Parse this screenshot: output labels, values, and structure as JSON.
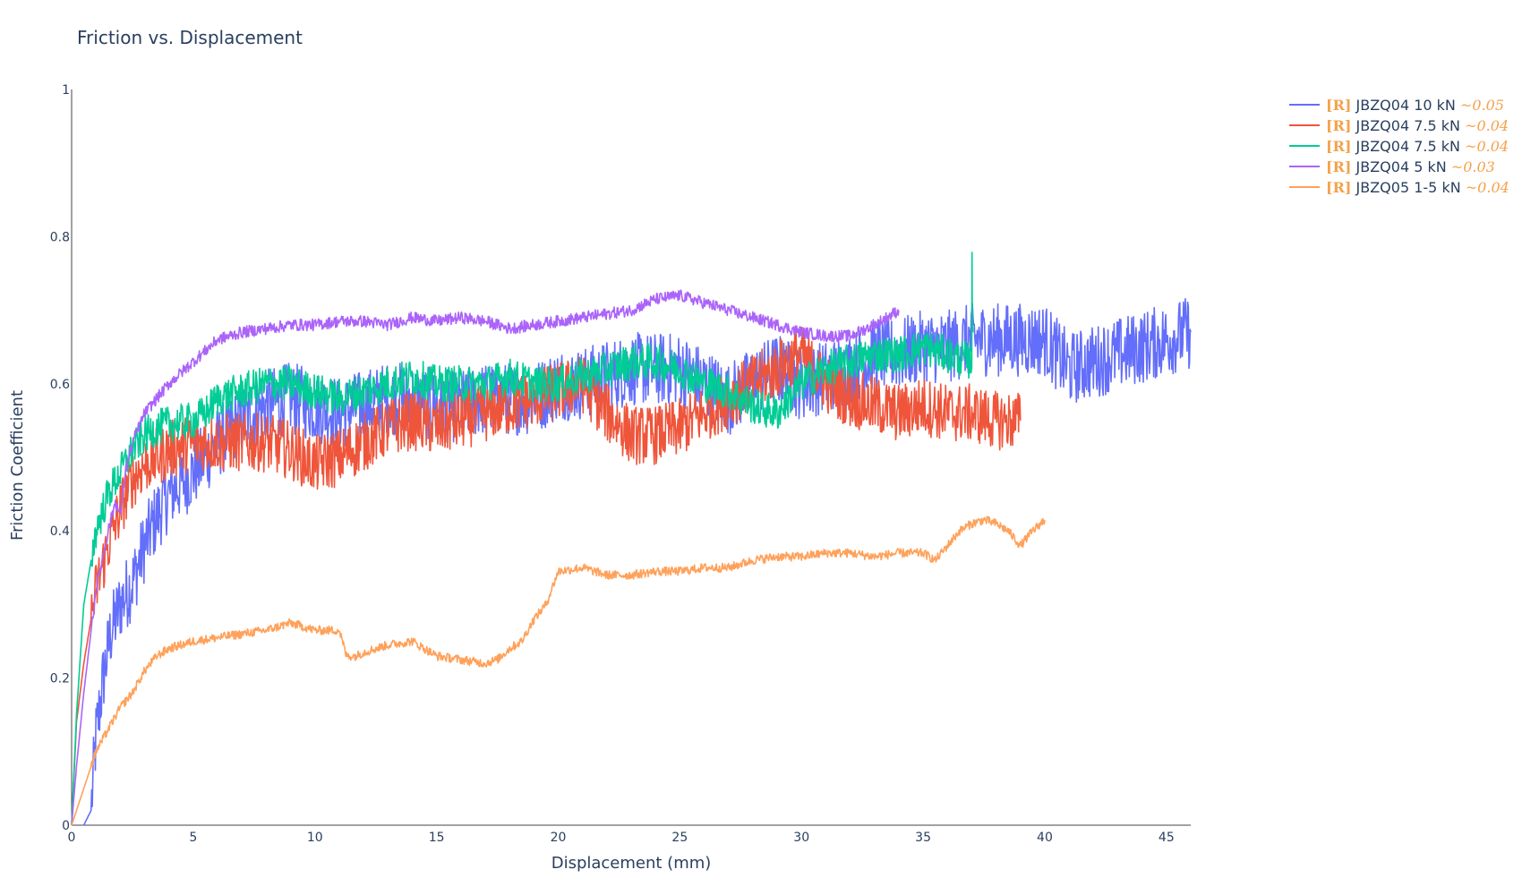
{
  "chart_data": {
    "type": "line",
    "title": "Friction vs. Displacement",
    "xlabel": "Displacement (mm)",
    "ylabel": "Friction Coefficient",
    "xlim": [
      0,
      46
    ],
    "ylim": [
      0,
      1
    ],
    "x_ticks": [
      "0",
      "5",
      "10",
      "15",
      "20",
      "25",
      "30",
      "35",
      "40",
      "45"
    ],
    "y_ticks": [
      "0",
      "0.2",
      "0.4",
      "0.6",
      "0.8",
      "1"
    ],
    "grid": false,
    "legend_position": "top-right",
    "tag_color": "#f4a24d",
    "series": [
      {
        "name": "JBZQ04 10 kN",
        "tag": "[R]",
        "approx": "~0.05",
        "color": "#636efa",
        "noise": 0.05,
        "x": [
          0.5,
          0.8,
          1.0,
          1.3,
          1.6,
          2.0,
          2.5,
          3.0,
          3.5,
          4.0,
          5.0,
          6.0,
          7.0,
          8.0,
          9.0,
          10.0,
          11.0,
          12.0,
          13.0,
          14.0,
          15.0,
          16.0,
          17.0,
          18.0,
          19.0,
          20.0,
          21.0,
          22.0,
          23.0,
          24.0,
          25.0,
          26.0,
          27.0,
          28.0,
          29.0,
          30.0,
          31.0,
          32.0,
          33.0,
          34.0,
          35.0,
          36.0,
          37.0,
          38.0,
          39.0,
          40.0,
          41.0,
          42.0,
          43.0,
          44.0,
          45.0,
          46.0
        ],
        "y": [
          0.0,
          0.02,
          0.12,
          0.2,
          0.26,
          0.3,
          0.33,
          0.38,
          0.42,
          0.45,
          0.48,
          0.52,
          0.55,
          0.57,
          0.58,
          0.57,
          0.56,
          0.57,
          0.58,
          0.58,
          0.57,
          0.57,
          0.58,
          0.58,
          0.58,
          0.6,
          0.6,
          0.61,
          0.62,
          0.62,
          0.62,
          0.6,
          0.58,
          0.6,
          0.62,
          0.6,
          0.61,
          0.62,
          0.64,
          0.64,
          0.65,
          0.65,
          0.66,
          0.66,
          0.66,
          0.66,
          0.62,
          0.63,
          0.64,
          0.65,
          0.66,
          0.67
        ]
      },
      {
        "name": "JBZQ04 7.5 kN",
        "tag": "[R]",
        "approx": "~0.04",
        "color": "#ef553b",
        "noise": 0.04,
        "x": [
          0.0,
          0.2,
          0.5,
          1.0,
          1.5,
          2.0,
          2.5,
          3.0,
          3.5,
          4.0,
          5.0,
          6.0,
          7.0,
          8.0,
          9.0,
          10.0,
          11.0,
          12.0,
          13.0,
          14.0,
          15.0,
          16.0,
          17.0,
          18.0,
          19.0,
          20.0,
          21.0,
          22.0,
          23.0,
          24.0,
          25.0,
          26.0,
          27.0,
          28.0,
          29.0,
          30.0,
          31.0,
          32.0,
          33.0,
          34.0,
          35.0,
          36.0,
          37.0,
          38.0,
          39.0
        ],
        "y": [
          0.0,
          0.14,
          0.22,
          0.32,
          0.38,
          0.43,
          0.47,
          0.49,
          0.5,
          0.51,
          0.52,
          0.52,
          0.52,
          0.52,
          0.51,
          0.49,
          0.5,
          0.52,
          0.54,
          0.55,
          0.54,
          0.55,
          0.56,
          0.57,
          0.58,
          0.59,
          0.6,
          0.56,
          0.53,
          0.53,
          0.54,
          0.56,
          0.58,
          0.6,
          0.62,
          0.64,
          0.6,
          0.58,
          0.57,
          0.56,
          0.57,
          0.56,
          0.56,
          0.55,
          0.55
        ]
      },
      {
        "name": "JBZQ04 7.5 kN",
        "tag": "[R]",
        "approx": "~0.04",
        "color": "#00cc96",
        "noise": 0.025,
        "x": [
          0.0,
          0.2,
          0.5,
          1.0,
          1.5,
          2.0,
          2.5,
          3.0,
          3.5,
          4.0,
          5.0,
          5.5,
          6.0,
          7.0,
          8.0,
          9.0,
          10.0,
          11.0,
          12.0,
          13.0,
          14.0,
          15.0,
          16.0,
          17.0,
          18.0,
          19.0,
          20.0,
          21.0,
          22.0,
          23.0,
          24.0,
          25.0,
          26.0,
          27.0,
          28.0,
          29.0,
          30.0,
          31.0,
          32.0,
          33.0,
          34.0,
          35.0,
          36.0,
          37.0,
          37.01,
          37.02,
          37.05
        ],
        "y": [
          0.0,
          0.15,
          0.3,
          0.4,
          0.45,
          0.48,
          0.51,
          0.53,
          0.54,
          0.545,
          0.55,
          0.56,
          0.58,
          0.59,
          0.6,
          0.6,
          0.59,
          0.58,
          0.59,
          0.6,
          0.61,
          0.6,
          0.6,
          0.6,
          0.61,
          0.6,
          0.6,
          0.61,
          0.62,
          0.63,
          0.63,
          0.62,
          0.6,
          0.59,
          0.57,
          0.56,
          0.6,
          0.62,
          0.63,
          0.64,
          0.64,
          0.65,
          0.64,
          0.63,
          0.8,
          0.66,
          0.67
        ]
      },
      {
        "name": "JBZQ04 5 kN",
        "tag": "[R]",
        "approx": "~0.03",
        "color": "#ab63fa",
        "noise": 0.008,
        "x": [
          0.0,
          0.2,
          0.5,
          1.0,
          1.5,
          1.8,
          2.0,
          2.2,
          2.5,
          3.0,
          3.5,
          4.0,
          5.0,
          6.0,
          7.0,
          8.0,
          9.0,
          10.0,
          11.0,
          12.0,
          13.0,
          14.0,
          15.0,
          16.0,
          17.0,
          18.0,
          19.0,
          20.0,
          21.0,
          22.0,
          23.0,
          24.0,
          25.0,
          26.0,
          27.0,
          28.0,
          29.0,
          30.0,
          31.0,
          32.0,
          33.0,
          34.0
        ],
        "y": [
          0.0,
          0.08,
          0.18,
          0.32,
          0.4,
          0.44,
          0.42,
          0.48,
          0.52,
          0.56,
          0.58,
          0.6,
          0.63,
          0.66,
          0.67,
          0.675,
          0.68,
          0.68,
          0.685,
          0.685,
          0.68,
          0.69,
          0.685,
          0.69,
          0.685,
          0.675,
          0.68,
          0.685,
          0.69,
          0.695,
          0.7,
          0.715,
          0.72,
          0.71,
          0.7,
          0.69,
          0.68,
          0.67,
          0.665,
          0.665,
          0.68,
          0.7
        ]
      },
      {
        "name": "JBZQ05 1-5 kN",
        "tag": "[R]",
        "approx": "~0.04",
        "color": "#ffa15a",
        "noise": 0.006,
        "x": [
          0.0,
          0.3,
          0.6,
          1.0,
          1.5,
          2.0,
          2.5,
          3.0,
          3.5,
          4.0,
          5.0,
          6.0,
          7.0,
          8.0,
          9.0,
          10.0,
          11.0,
          11.3,
          11.7,
          12.0,
          13.0,
          14.0,
          14.5,
          15.0,
          16.0,
          17.0,
          17.5,
          18.0,
          18.5,
          19.0,
          19.5,
          20.0,
          21.0,
          22.0,
          23.0,
          24.0,
          25.0,
          26.0,
          27.0,
          28.0,
          29.0,
          30.0,
          31.0,
          32.0,
          33.0,
          34.0,
          35.0,
          35.5,
          36.0,
          36.5,
          37.0,
          37.5,
          38.0,
          38.5,
          39.0,
          39.5,
          40.0
        ],
        "y": [
          0.0,
          0.03,
          0.06,
          0.1,
          0.13,
          0.16,
          0.18,
          0.21,
          0.23,
          0.24,
          0.25,
          0.255,
          0.26,
          0.265,
          0.275,
          0.265,
          0.265,
          0.23,
          0.23,
          0.235,
          0.245,
          0.25,
          0.24,
          0.23,
          0.225,
          0.22,
          0.225,
          0.24,
          0.25,
          0.28,
          0.3,
          0.345,
          0.35,
          0.34,
          0.34,
          0.345,
          0.345,
          0.35,
          0.35,
          0.36,
          0.365,
          0.365,
          0.37,
          0.37,
          0.365,
          0.37,
          0.37,
          0.36,
          0.38,
          0.4,
          0.41,
          0.415,
          0.41,
          0.4,
          0.38,
          0.4,
          0.415
        ]
      }
    ]
  }
}
